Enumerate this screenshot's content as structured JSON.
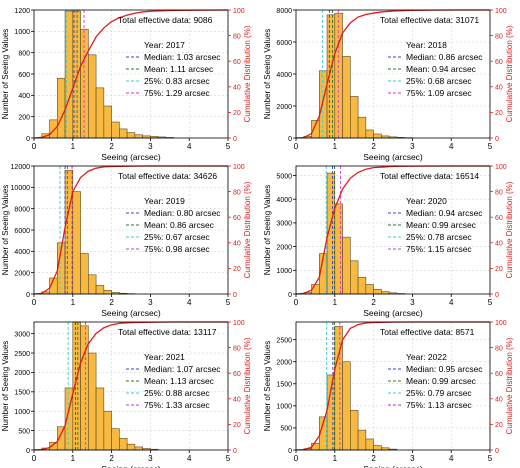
{
  "colors": {
    "bar_fill": "#f7b940",
    "bar_edge": "#5a4a2a",
    "cdf_line": "#e01b1b",
    "right_axis": "#e01b1b",
    "median_line": "#3b3bd6",
    "mean_line": "#2a7a2a",
    "p25_line": "#36d1d1",
    "p75_line": "#d633d6",
    "grid": "#d4d4d4",
    "axis": "#000000"
  },
  "chart_data": [
    {
      "type": "bar",
      "panel": "2017",
      "xlabel": "Seeing (arcsec)",
      "ylabel": "Number of Seeing Values",
      "y2label": "Cumulative Distribution (%)",
      "xlim": [
        0,
        5
      ],
      "ylim": [
        0,
        1200
      ],
      "y2lim": [
        0,
        100
      ],
      "xticks": [
        "0",
        "1",
        "2",
        "3",
        "4",
        "5"
      ],
      "yticks": [
        "0",
        "200",
        "400",
        "600",
        "800",
        "1000",
        "1200"
      ],
      "y2ticks": [
        "0",
        "20",
        "40",
        "60",
        "80",
        "100"
      ],
      "bin_width": 0.2,
      "bin_edges": [
        0.2,
        0.4,
        0.6,
        0.8,
        1.0,
        1.2,
        1.4,
        1.6,
        1.8,
        2.0,
        2.2,
        2.4,
        2.6,
        2.8,
        3.0,
        3.2,
        3.4,
        3.6
      ],
      "values": [
        40,
        170,
        560,
        1190,
        1190,
        1020,
        780,
        470,
        300,
        150,
        85,
        50,
        30,
        20,
        15,
        10,
        5
      ],
      "cdf_x": [
        0.0,
        0.2,
        0.4,
        0.6,
        0.8,
        1.0,
        1.2,
        1.4,
        1.6,
        1.8,
        2.0,
        2.2,
        2.4,
        2.6,
        2.8,
        3.0,
        3.5,
        4.0,
        4.5,
        5.0
      ],
      "cdf_y": [
        0.0,
        0.5,
        2.5,
        9.0,
        22.0,
        39.0,
        56.0,
        68.0,
        79.0,
        86.0,
        91.0,
        94.0,
        96.0,
        97.5,
        98.5,
        99.0,
        99.6,
        99.8,
        99.9,
        100.0
      ],
      "median": 1.03,
      "mean": 1.11,
      "p25": 0.83,
      "p75": 1.29,
      "total_text": "Total effective data: 9086",
      "legend": [
        "Year: 2017",
        "Median: 1.03 arcsec",
        "Mean: 1.11 arcsec",
        "25%: 0.83 arcsec",
        "75%: 1.29 arcsec"
      ],
      "legend_placement": "right",
      "grid": true
    },
    {
      "type": "bar",
      "panel": "2018",
      "xlabel": "Seeing (arcsec)",
      "ylabel": "Number of Seeing Values",
      "y2label": "Cumulative Distribution (%)",
      "xlim": [
        0,
        5
      ],
      "ylim": [
        0,
        8000
      ],
      "y2lim": [
        0,
        100
      ],
      "xticks": [
        "0",
        "1",
        "2",
        "3",
        "4",
        "5"
      ],
      "yticks": [
        "0",
        "2000",
        "4000",
        "6000",
        "8000"
      ],
      "y2ticks": [
        "0",
        "20",
        "40",
        "60",
        "80",
        "100"
      ],
      "bin_width": 0.2,
      "bin_edges": [
        0.2,
        0.4,
        0.6,
        0.8,
        1.0,
        1.2,
        1.4,
        1.6,
        1.8,
        2.0,
        2.2,
        2.4,
        2.6,
        2.8,
        3.0
      ],
      "values": [
        100,
        1100,
        4200,
        7700,
        7800,
        5100,
        2600,
        1300,
        500,
        250,
        130,
        70,
        40,
        20
      ],
      "cdf_x": [
        0.0,
        0.2,
        0.4,
        0.6,
        0.8,
        1.0,
        1.2,
        1.4,
        1.6,
        1.8,
        2.0,
        2.2,
        2.5,
        3.0,
        3.5,
        4.0,
        5.0
      ],
      "cdf_y": [
        0.0,
        0.3,
        3.5,
        17.0,
        42.0,
        66.0,
        82.0,
        90.0,
        94.5,
        96.5,
        97.6,
        98.5,
        99.2,
        99.7,
        99.9,
        100.0,
        100.0
      ],
      "median": 0.86,
      "mean": 0.94,
      "p25": 0.68,
      "p75": 1.09,
      "total_text": "Total effective data: 31071",
      "legend": [
        "Year: 2018",
        "Median: 0.86 arcsec",
        "Mean: 0.94 arcsec",
        "25%: 0.68 arcsec",
        "75%: 1.09 arcsec"
      ],
      "legend_placement": "right",
      "grid": true
    },
    {
      "type": "bar",
      "panel": "2019",
      "xlabel": "Seeing (arcsec)",
      "ylabel": "Number of Seeing Values",
      "y2label": "Cumulative Distribution (%)",
      "xlim": [
        0,
        5
      ],
      "ylim": [
        0,
        12000
      ],
      "y2lim": [
        0,
        100
      ],
      "xticks": [
        "0",
        "1",
        "2",
        "3",
        "4",
        "5"
      ],
      "yticks": [
        "0",
        "2000",
        "4000",
        "6000",
        "8000",
        "10000",
        "12000"
      ],
      "y2ticks": [
        "0",
        "20",
        "40",
        "60",
        "80",
        "100"
      ],
      "bin_width": 0.2,
      "bin_edges": [
        0.2,
        0.4,
        0.6,
        0.8,
        1.0,
        1.2,
        1.4,
        1.6,
        1.8,
        2.0,
        2.2,
        2.4,
        2.6
      ],
      "values": [
        200,
        1500,
        4800,
        11600,
        9600,
        3800,
        1800,
        800,
        350,
        150,
        70,
        30
      ],
      "cdf_x": [
        0.0,
        0.2,
        0.4,
        0.6,
        0.8,
        1.0,
        1.2,
        1.4,
        1.6,
        1.8,
        2.0,
        2.5,
        3.0,
        4.0,
        5.0
      ],
      "cdf_y": [
        0.0,
        0.5,
        4.5,
        18.0,
        52.0,
        80.0,
        91.0,
        96.0,
        98.3,
        99.3,
        99.6,
        99.9,
        100.0,
        100.0,
        100.0
      ],
      "median": 0.8,
      "mean": 0.86,
      "p25": 0.67,
      "p75": 0.98,
      "total_text": "Total effective data: 34626",
      "legend": [
        "Year: 2019",
        "Median: 0.80 arcsec",
        "Mean: 0.86 arcsec",
        "25%: 0.67 arcsec",
        "75%: 0.98 arcsec"
      ],
      "legend_placement": "right",
      "grid": true
    },
    {
      "type": "bar",
      "panel": "2020",
      "xlabel": "Seeing (arcsec)",
      "ylabel": "Number of Seeing Values",
      "y2label": "Cumulative Distribution (%)",
      "xlim": [
        0,
        5
      ],
      "ylim": [
        0,
        5400
      ],
      "y2lim": [
        0,
        100
      ],
      "xticks": [
        "0",
        "1",
        "2",
        "3",
        "4",
        "5"
      ],
      "yticks": [
        "0",
        "1000",
        "2000",
        "3000",
        "4000",
        "5000"
      ],
      "y2ticks": [
        "0",
        "20",
        "40",
        "60",
        "80",
        "100"
      ],
      "bin_width": 0.2,
      "bin_edges": [
        0.2,
        0.4,
        0.6,
        0.8,
        1.0,
        1.2,
        1.4,
        1.6,
        1.8,
        2.0,
        2.2,
        2.4,
        2.6,
        2.8
      ],
      "values": [
        60,
        400,
        1700,
        5100,
        3800,
        2400,
        1400,
        700,
        400,
        200,
        100,
        50,
        20
      ],
      "cdf_x": [
        0.0,
        0.2,
        0.4,
        0.6,
        0.8,
        1.0,
        1.2,
        1.4,
        1.6,
        1.8,
        2.0,
        2.5,
        3.0,
        4.0,
        5.0
      ],
      "cdf_y": [
        0.0,
        0.4,
        3.0,
        13.0,
        44.0,
        67.0,
        82.0,
        90.5,
        95.0,
        97.5,
        98.7,
        99.7,
        99.9,
        100.0,
        100.0
      ],
      "median": 0.94,
      "mean": 0.99,
      "p25": 0.78,
      "p75": 1.15,
      "total_text": "Total effective data: 16514",
      "legend": [
        "Year: 2020",
        "Median: 0.94 arcsec",
        "Mean: 0.99 arcsec",
        "25%: 0.78 arcsec",
        "75%: 1.15 arcsec"
      ],
      "legend_placement": "right",
      "grid": true
    },
    {
      "type": "bar",
      "panel": "2021",
      "xlabel": "Seeing (arcsec)",
      "ylabel": "Number of Seeing Values",
      "y2label": "Cumulative Distribution (%)",
      "xlim": [
        0,
        5
      ],
      "ylim": [
        0,
        3300
      ],
      "y2lim": [
        0,
        100
      ],
      "xticks": [
        "0",
        "1",
        "2",
        "3",
        "4",
        "5"
      ],
      "yticks": [
        "0",
        "500",
        "1000",
        "1500",
        "2000",
        "2500",
        "3000"
      ],
      "y2ticks": [
        "0",
        "20",
        "40",
        "60",
        "80",
        "100"
      ],
      "bin_width": 0.2,
      "bin_edges": [
        0.2,
        0.4,
        0.6,
        0.8,
        1.0,
        1.2,
        1.4,
        1.6,
        1.8,
        2.0,
        2.2,
        2.4,
        2.6,
        2.8,
        3.0,
        3.2
      ],
      "values": [
        50,
        200,
        600,
        1600,
        3300,
        3200,
        2500,
        1600,
        1000,
        550,
        300,
        150,
        80,
        40,
        20
      ],
      "cdf_x": [
        0.0,
        0.2,
        0.4,
        0.6,
        0.8,
        1.0,
        1.2,
        1.4,
        1.6,
        1.8,
        2.0,
        2.2,
        2.5,
        3.0,
        3.5,
        4.0,
        5.0
      ],
      "cdf_y": [
        0.0,
        0.4,
        1.9,
        6.5,
        19.0,
        44.0,
        68.0,
        83.0,
        91.0,
        95.5,
        97.8,
        99.0,
        99.5,
        99.8,
        100.0,
        100.0,
        100.0
      ],
      "median": 1.07,
      "mean": 1.13,
      "p25": 0.88,
      "p75": 1.33,
      "total_text": "Total effective data: 13117",
      "legend": [
        "Year: 2021",
        "Median: 1.07 arcsec",
        "Mean: 1.13 arcsec",
        "25%: 0.88 arcsec",
        "75%: 1.33 arcsec"
      ],
      "legend_placement": "right",
      "grid": true
    },
    {
      "type": "bar",
      "panel": "2022",
      "xlabel": "Seeing (arcsec)",
      "ylabel": "Number of Seeing Values",
      "y2label": "Cumulative Distribution (%)",
      "xlim": [
        0,
        5
      ],
      "ylim": [
        0,
        2900
      ],
      "y2lim": [
        0,
        100
      ],
      "xticks": [
        "0",
        "1",
        "2",
        "3",
        "4",
        "5"
      ],
      "yticks": [
        "0",
        "500",
        "1000",
        "1500",
        "2000",
        "2500"
      ],
      "y2ticks": [
        "0",
        "20",
        "40",
        "60",
        "80",
        "100"
      ],
      "bin_width": 0.2,
      "bin_edges": [
        0.2,
        0.4,
        0.6,
        0.8,
        1.0,
        1.2,
        1.4,
        1.6,
        1.8,
        2.0,
        2.2,
        2.4,
        2.6
      ],
      "values": [
        30,
        150,
        750,
        1700,
        2800,
        2000,
        900,
        450,
        250,
        100,
        50,
        20
      ],
      "cdf_x": [
        0.0,
        0.2,
        0.4,
        0.6,
        0.8,
        1.0,
        1.2,
        1.4,
        1.6,
        1.8,
        2.0,
        2.5,
        3.0,
        4.0,
        5.0
      ],
      "cdf_y": [
        0.0,
        0.3,
        2.1,
        11.0,
        31.0,
        63.0,
        86.0,
        95.0,
        98.0,
        99.2,
        99.6,
        99.9,
        100.0,
        100.0,
        100.0
      ],
      "median": 0.95,
      "mean": 0.99,
      "p25": 0.79,
      "p75": 1.13,
      "total_text": "Total effective data: 8571",
      "legend": [
        "Year: 2022",
        "Median: 0.95 arcsec",
        "Mean: 0.99 arcsec",
        "25%: 0.79 arcsec",
        "75%: 1.13 arcsec"
      ],
      "legend_placement": "right",
      "grid": true
    }
  ]
}
